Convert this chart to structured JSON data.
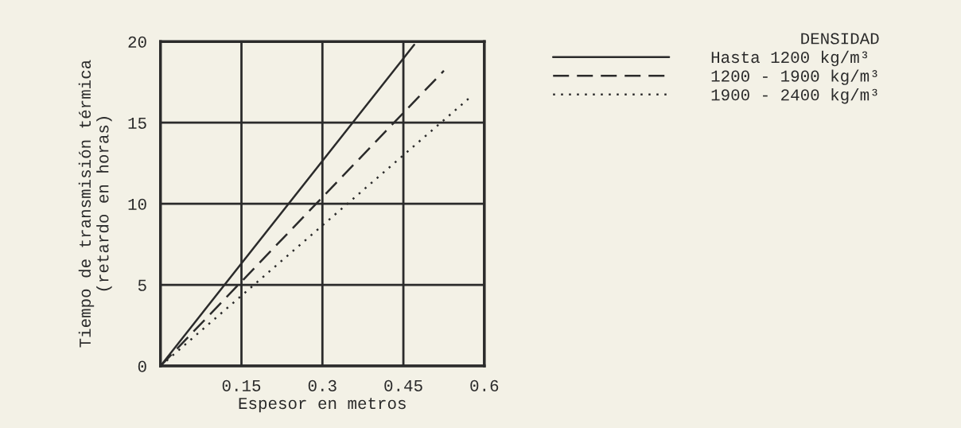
{
  "chart_data": {
    "type": "line",
    "xlabel": "Espesor en metros",
    "ylabel": "Tiempo de transmisión térmica\n(retardo en horas)",
    "legend_title": "DENSIDAD",
    "series": [
      {
        "name": "Hasta 1200 kg/m³",
        "color": "#2b2b2b",
        "line_style": "solid",
        "x": [
          0,
          0.47
        ],
        "values": [
          0,
          19.8
        ]
      },
      {
        "name": "1200 - 1900 kg/m³",
        "color": "#2b2b2b",
        "line_style": "dashed",
        "x": [
          0,
          0.525
        ],
        "values": [
          0,
          18.2
        ]
      },
      {
        "name": "1900 - 2400 kg/m³",
        "color": "#2b2b2b",
        "line_style": "dotted",
        "x": [
          0,
          0.575
        ],
        "values": [
          0,
          16.6
        ]
      }
    ],
    "xlim": [
      0,
      0.6
    ],
    "ylim": [
      0,
      20
    ],
    "xticks": [
      0.15,
      0.3,
      0.45,
      0.6
    ],
    "yticks": [
      0,
      5,
      10,
      15,
      20
    ],
    "grid": true,
    "legend": "top right"
  }
}
